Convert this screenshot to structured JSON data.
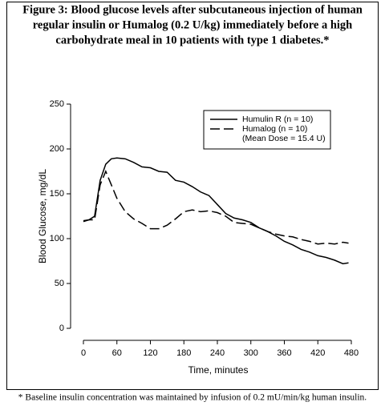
{
  "chart_data": {
    "type": "line",
    "title": [
      "Figure 3: Blood glucose levels after subcutaneous injection of human",
      "regular insulin or Humalog (0.2 U/kg) immediately before a high",
      "carbohydrate meal in 10 patients with type 1 diabetes.*"
    ],
    "xlabel": "Time, minutes",
    "ylabel": "Blood Glucose, mg/dL",
    "footnote": "* Baseline insulin concentration was maintained by infusion of 0.2 mU/min/kg human insulin.",
    "legend_note": "(Mean Dose = 15.4 U)",
    "x": [
      0,
      10,
      20,
      30,
      40,
      50,
      60,
      75,
      90,
      105,
      120,
      135,
      150,
      165,
      180,
      195,
      210,
      225,
      240,
      255,
      270,
      285,
      300,
      315,
      330,
      345,
      360,
      375,
      390,
      405,
      420,
      435,
      450,
      465,
      475
    ],
    "series": [
      {
        "name": "Humulin R (n = 10)",
        "color": "#000000",
        "dash": "none",
        "values": [
          120,
          121,
          125,
          165,
          183,
          189,
          190,
          189,
          185,
          180,
          179,
          175,
          174,
          165,
          163,
          158,
          152,
          148,
          138,
          128,
          123,
          121,
          118,
          112,
          108,
          103,
          97,
          93,
          88,
          85,
          81,
          79,
          76,
          72,
          73
        ]
      },
      {
        "name": "Humalog (n = 10)",
        "color": "#000000",
        "dash": "12 5",
        "values": [
          119,
          121,
          121,
          160,
          175,
          160,
          145,
          130,
          122,
          117,
          111,
          111,
          115,
          122,
          130,
          132,
          130,
          131,
          129,
          125,
          118,
          117,
          116,
          112,
          108,
          105,
          103,
          102,
          99,
          97,
          94,
          95,
          94,
          96,
          95
        ]
      }
    ],
    "xlim": [
      0,
      480
    ],
    "xticks": [
      0,
      60,
      120,
      180,
      240,
      300,
      360,
      420,
      480
    ],
    "ylim": [
      0,
      250
    ],
    "yticks": [
      0,
      50,
      100,
      150,
      200,
      250
    ],
    "grid": false,
    "legend": "upper right"
  }
}
